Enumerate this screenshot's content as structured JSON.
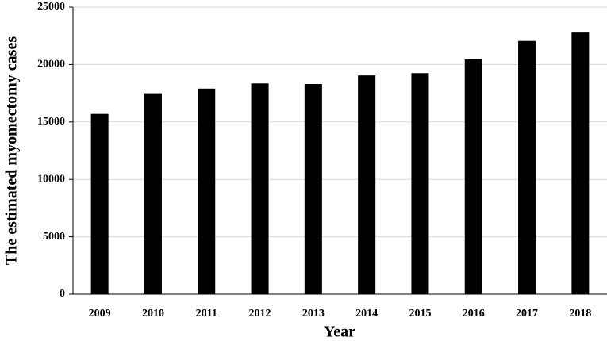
{
  "chart_data": {
    "type": "bar",
    "xlabel": "Year",
    "ylabel": "The estimated myomectomy cases",
    "categories": [
      "2009",
      "2010",
      "2011",
      "2012",
      "2013",
      "2014",
      "2015",
      "2016",
      "2017",
      "2018"
    ],
    "values": [
      15700,
      17500,
      17900,
      18350,
      18300,
      19050,
      19250,
      20450,
      22050,
      22850
    ],
    "color": "#000000",
    "ylim": [
      0,
      25000
    ],
    "yticks": [
      0,
      5000,
      10000,
      15000,
      20000,
      25000
    ],
    "grid": true
  }
}
